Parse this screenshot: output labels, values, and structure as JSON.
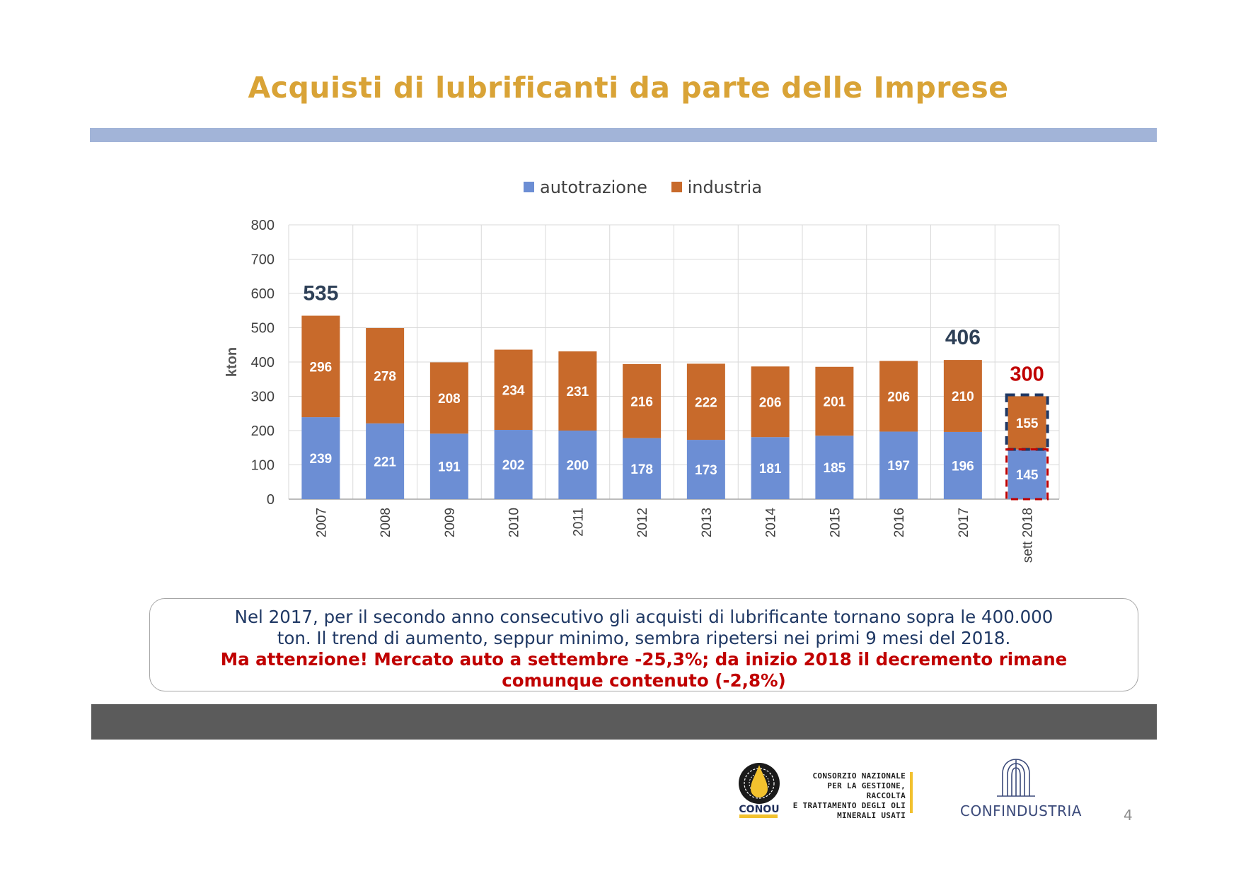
{
  "title": "Acquisti di lubrificanti da parte delle Imprese",
  "legend": {
    "series1": "autotrazione",
    "series2": "industria"
  },
  "colors": {
    "autotrazione": "#6C8ED4",
    "industria": "#C86A2B",
    "title": "#D9A336",
    "total": "#2E4057",
    "highlight": "#C00000"
  },
  "chart_data": {
    "type": "bar",
    "stacked": true,
    "ylabel": "kton",
    "ylim": [
      0,
      800
    ],
    "yticks": [
      0,
      100,
      200,
      300,
      400,
      500,
      600,
      700,
      800
    ],
    "grid": true,
    "legend_position": "top",
    "categories": [
      "2007",
      "2008",
      "2009",
      "2010",
      "2011",
      "2012",
      "2013",
      "2014",
      "2015",
      "2016",
      "2017",
      "sett 2018"
    ],
    "series": [
      {
        "name": "autotrazione",
        "values": [
          239,
          221,
          191,
          202,
          200,
          178,
          173,
          181,
          185,
          197,
          196,
          145
        ]
      },
      {
        "name": "industria",
        "values": [
          296,
          278,
          208,
          234,
          231,
          216,
          222,
          206,
          201,
          206,
          210,
          155
        ]
      }
    ],
    "annotations": [
      {
        "category": "2007",
        "text": "535"
      },
      {
        "category": "2017",
        "text": "406"
      },
      {
        "category": "sett 2018",
        "text": "300"
      }
    ]
  },
  "note": {
    "line1": "Nel 2017, per il secondo anno consecutivo gli acquisti di lubrificante tornano sopra le 400.000",
    "line2": "ton. Il trend di aumento, seppur minimo, sembra ripetersi nei primi 9 mesi del 2018.",
    "line3": "Ma attenzione! Mercato auto a settembre -25,3%; da inizio 2018 il decremento rimane",
    "line4": "comunque contenuto (-2,8%)"
  },
  "footer": {
    "conou_lines": [
      "CONSORZIO NAZIONALE",
      "PER LA GESTIONE, RACCOLTA",
      "E TRATTAMENTO DEGLI OLI",
      "MINERALI USATI"
    ],
    "conou_name": "CONOU",
    "confindustria": "CONFINDUSTRIA",
    "page_number": "4"
  }
}
